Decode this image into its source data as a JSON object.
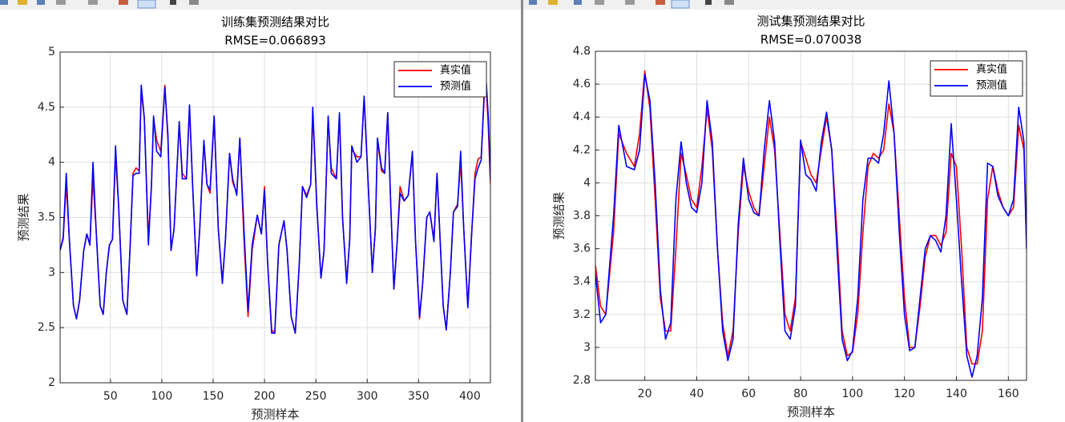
{
  "chart_data": [
    {
      "type": "line",
      "title": "训练集预测结果对比",
      "subtitle": "RMSE=0.066893",
      "xlabel": "预测样本",
      "ylabel": "预测结果",
      "x": [
        1,
        4,
        7,
        10,
        14,
        17,
        20,
        24,
        27,
        30,
        33,
        36,
        40,
        43,
        46,
        49,
        52,
        55,
        58,
        62,
        66,
        69,
        72,
        75,
        78,
        80,
        83,
        87,
        90,
        92,
        95,
        99,
        103,
        106,
        109,
        112,
        117,
        120,
        124,
        127,
        130,
        134,
        137,
        141,
        144,
        147,
        151,
        155,
        159,
        162,
        166,
        169,
        173,
        176,
        180,
        184,
        188,
        193,
        197,
        200,
        203,
        207,
        210,
        214,
        219,
        222,
        226,
        230,
        234,
        237,
        241,
        245,
        247,
        251,
        255,
        258,
        262,
        265,
        270,
        273,
        276,
        280,
        283,
        285,
        290,
        294,
        297,
        301,
        305,
        308,
        310,
        314,
        317,
        320,
        323,
        326,
        329,
        332,
        336,
        340,
        344,
        347,
        351,
        354,
        358,
        361,
        365,
        368,
        371,
        374,
        377,
        381,
        384,
        388,
        391,
        394,
        398,
        402,
        405,
        408,
        411,
        414,
        416,
        418,
        420
      ],
      "series": [
        {
          "name": "真实值",
          "color": "#ff0000",
          "values": [
            3.2,
            3.3,
            3.8,
            3.3,
            2.7,
            2.58,
            2.75,
            3.2,
            3.35,
            3.25,
            3.85,
            3.4,
            2.7,
            2.62,
            3.0,
            3.25,
            3.3,
            4.05,
            3.6,
            2.75,
            2.62,
            3.2,
            3.9,
            3.95,
            3.92,
            4.65,
            4.4,
            3.3,
            3.8,
            4.4,
            4.2,
            4.1,
            4.7,
            4.2,
            3.2,
            3.4,
            4.35,
            3.9,
            3.85,
            4.5,
            3.8,
            2.97,
            3.4,
            4.18,
            3.8,
            3.72,
            4.4,
            3.4,
            2.92,
            3.3,
            4.08,
            3.82,
            3.72,
            4.22,
            3.3,
            2.6,
            3.2,
            3.52,
            3.35,
            3.78,
            3.1,
            2.48,
            2.45,
            3.25,
            3.47,
            3.2,
            2.6,
            2.45,
            3.1,
            3.78,
            3.7,
            3.8,
            4.45,
            3.6,
            2.95,
            3.2,
            4.4,
            3.95,
            3.85,
            4.42,
            3.5,
            2.92,
            3.3,
            4.12,
            4.05,
            4.05,
            4.58,
            3.8,
            3.0,
            3.4,
            4.2,
            3.92,
            3.9,
            4.45,
            3.6,
            2.85,
            3.25,
            3.78,
            3.65,
            3.7,
            4.08,
            3.3,
            2.58,
            2.9,
            3.5,
            3.55,
            3.3,
            3.9,
            3.3,
            2.7,
            2.48,
            3.0,
            3.55,
            3.62,
            4.0,
            3.4,
            2.7,
            3.4,
            3.9,
            4.03,
            4.05,
            4.6,
            4.68,
            4.3,
            3.8
          ]
        },
        {
          "name": "预测值",
          "color": "#0000ff",
          "values": [
            3.2,
            3.32,
            3.9,
            3.3,
            2.7,
            2.58,
            2.75,
            3.2,
            3.35,
            3.25,
            4.0,
            3.4,
            2.7,
            2.62,
            3.0,
            3.25,
            3.3,
            4.15,
            3.6,
            2.75,
            2.62,
            3.2,
            3.88,
            3.9,
            3.9,
            4.7,
            4.4,
            3.25,
            3.8,
            4.42,
            4.1,
            4.05,
            4.68,
            4.25,
            3.2,
            3.4,
            4.37,
            3.85,
            3.85,
            4.52,
            3.8,
            2.97,
            3.4,
            4.2,
            3.8,
            3.75,
            4.42,
            3.4,
            2.9,
            3.3,
            4.08,
            3.85,
            3.7,
            4.22,
            3.4,
            2.65,
            3.25,
            3.52,
            3.35,
            3.75,
            3.1,
            2.45,
            2.45,
            3.25,
            3.47,
            3.2,
            2.6,
            2.45,
            3.1,
            3.78,
            3.68,
            3.8,
            4.5,
            3.6,
            2.95,
            3.2,
            4.42,
            3.9,
            3.85,
            4.45,
            3.5,
            2.9,
            3.3,
            4.15,
            4.0,
            4.05,
            4.6,
            3.8,
            3.0,
            3.4,
            4.22,
            3.95,
            3.9,
            4.45,
            3.6,
            2.85,
            3.25,
            3.72,
            3.65,
            3.7,
            4.1,
            3.3,
            2.6,
            2.9,
            3.5,
            3.55,
            3.28,
            3.9,
            3.3,
            2.7,
            2.48,
            3.0,
            3.55,
            3.6,
            4.1,
            3.4,
            2.68,
            3.4,
            3.85,
            3.95,
            4.02,
            4.65,
            4.72,
            4.4,
            3.85
          ]
        }
      ],
      "xlim": [
        1,
        420
      ],
      "ylim": [
        2,
        5
      ],
      "xticks": [
        50,
        100,
        150,
        200,
        250,
        300,
        350,
        400
      ],
      "yticks": [
        2,
        2.5,
        3,
        3.5,
        4,
        4.5,
        5
      ],
      "grid": true,
      "legend": "upper right"
    },
    {
      "type": "line",
      "title": "测试集预测结果对比",
      "subtitle": "RMSE=0.070038",
      "xlabel": "预测样本",
      "ylabel": "预测结果",
      "x": [
        1,
        3,
        5,
        8,
        10,
        13,
        16,
        18,
        20,
        22,
        24,
        26,
        28,
        30,
        32,
        34,
        36,
        38,
        40,
        42,
        44,
        46,
        48,
        50,
        52,
        54,
        56,
        58,
        60,
        62,
        64,
        66,
        68,
        70,
        72,
        74,
        76,
        78,
        80,
        82,
        84,
        86,
        88,
        90,
        92,
        94,
        96,
        98,
        100,
        102,
        104,
        106,
        108,
        110,
        112,
        114,
        116,
        118,
        120,
        122,
        124,
        126,
        128,
        130,
        132,
        134,
        136,
        138,
        140,
        142,
        144,
        146,
        148,
        150,
        152,
        154,
        156,
        158,
        160,
        162,
        164,
        166,
        167
      ],
      "series": [
        {
          "name": "真实值",
          "color": "#ff0000",
          "values": [
            3.5,
            3.25,
            3.2,
            3.7,
            4.3,
            4.18,
            4.1,
            4.3,
            4.68,
            4.45,
            3.9,
            3.3,
            3.1,
            3.1,
            3.6,
            4.18,
            4.05,
            3.9,
            3.85,
            4.1,
            4.45,
            4.2,
            3.6,
            3.15,
            2.95,
            3.1,
            3.7,
            4.1,
            3.95,
            3.85,
            3.8,
            4.1,
            4.4,
            4.2,
            3.7,
            3.2,
            3.1,
            3.3,
            4.25,
            4.15,
            4.05,
            4.0,
            4.2,
            4.4,
            4.2,
            3.7,
            3.1,
            2.95,
            2.97,
            3.2,
            3.7,
            4.1,
            4.18,
            4.15,
            4.2,
            4.48,
            4.3,
            3.8,
            3.3,
            3.0,
            3.0,
            3.25,
            3.55,
            3.68,
            3.68,
            3.62,
            3.7,
            4.18,
            4.1,
            3.6,
            3.0,
            2.9,
            2.9,
            3.1,
            3.9,
            4.1,
            3.95,
            3.85,
            3.8,
            3.85,
            4.35,
            4.2,
            3.6
          ]
        },
        {
          "name": "预测值",
          "color": "#0000ff",
          "values": [
            3.45,
            3.15,
            3.2,
            3.8,
            4.35,
            4.1,
            4.08,
            4.2,
            4.66,
            4.5,
            4.0,
            3.35,
            3.05,
            3.15,
            3.9,
            4.25,
            4.0,
            3.85,
            3.82,
            4.0,
            4.5,
            4.25,
            3.6,
            3.1,
            2.92,
            3.05,
            3.75,
            4.15,
            3.9,
            3.82,
            3.8,
            4.2,
            4.5,
            4.25,
            3.65,
            3.1,
            3.05,
            3.25,
            4.26,
            4.05,
            4.02,
            3.95,
            4.25,
            4.43,
            4.2,
            3.6,
            3.05,
            2.92,
            2.98,
            3.3,
            3.9,
            4.15,
            4.15,
            4.12,
            4.3,
            4.62,
            4.3,
            3.7,
            3.2,
            2.98,
            3.0,
            3.3,
            3.6,
            3.68,
            3.65,
            3.58,
            3.8,
            4.36,
            3.9,
            3.4,
            2.95,
            2.82,
            2.95,
            3.3,
            4.12,
            4.1,
            3.92,
            3.85,
            3.8,
            3.9,
            4.46,
            4.25,
            3.6
          ]
        }
      ],
      "xlim": [
        1,
        167
      ],
      "ylim": [
        2.8,
        4.8
      ],
      "xticks": [
        20,
        40,
        60,
        80,
        100,
        120,
        140,
        160
      ],
      "yticks": [
        2.8,
        3,
        3.2,
        3.4,
        3.6,
        3.8,
        4,
        4.2,
        4.4,
        4.6,
        4.8
      ],
      "grid": true,
      "legend": "upper right"
    }
  ]
}
